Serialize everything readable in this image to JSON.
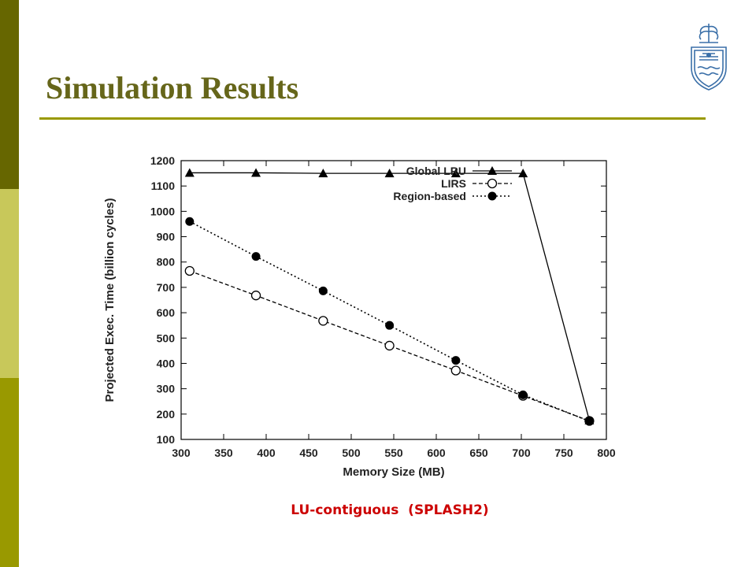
{
  "slide": {
    "title": "Simulation Results",
    "caption": "LU-contiguous  (SPLASH2)",
    "accent_color": "#999900",
    "title_color": "#66661a",
    "caption_color": "#cc0000",
    "logo_icon": "university-crest-icon"
  },
  "chart_data": {
    "type": "line",
    "title": "",
    "xlabel": "Memory Size (MB)",
    "ylabel": "Projected Exec. Time (billion cycles)",
    "xlim": [
      300,
      800
    ],
    "ylim": [
      100,
      1200
    ],
    "xticks": [
      300,
      350,
      400,
      450,
      500,
      550,
      600,
      650,
      700,
      750,
      800
    ],
    "yticks": [
      100,
      200,
      300,
      400,
      500,
      600,
      700,
      800,
      900,
      1000,
      1100,
      1200
    ],
    "grid": false,
    "legend_position": "top-right",
    "series": [
      {
        "name": "Global LRU",
        "marker": "filled-triangle",
        "line": "solid",
        "points": [
          [
            310,
            1152
          ],
          [
            388,
            1152
          ],
          [
            467,
            1150
          ],
          [
            545,
            1150
          ],
          [
            623,
            1150
          ],
          [
            702,
            1150
          ],
          [
            780,
            175
          ]
        ]
      },
      {
        "name": "LIRS",
        "marker": "open-circle",
        "line": "dashed",
        "points": [
          [
            310,
            765
          ],
          [
            388,
            668
          ],
          [
            467,
            568
          ],
          [
            545,
            470
          ],
          [
            623,
            372
          ],
          [
            702,
            272
          ],
          [
            780,
            173
          ]
        ]
      },
      {
        "name": "Region-based",
        "marker": "filled-circle",
        "line": "dotted",
        "points": [
          [
            310,
            960
          ],
          [
            388,
            822
          ],
          [
            467,
            686
          ],
          [
            545,
            550
          ],
          [
            623,
            412
          ],
          [
            702,
            276
          ],
          [
            780,
            172
          ]
        ]
      }
    ]
  }
}
